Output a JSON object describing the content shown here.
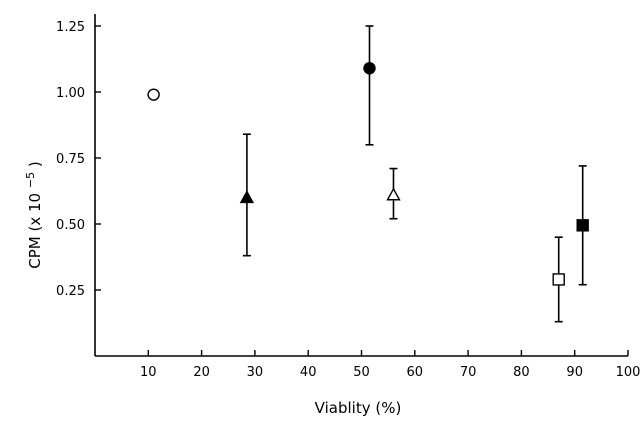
{
  "chart_data": {
    "type": "scatter",
    "title": "",
    "xlabel": "Viablity (%)",
    "ylabel": "CPM (x 10",
    "ylabel_exponent": "−5",
    "ylabel_suffix": ")",
    "xlim": [
      0,
      100
    ],
    "ylim": [
      0,
      1.35
    ],
    "x_ticks": [
      10,
      20,
      30,
      40,
      50,
      60,
      70,
      80,
      90,
      100
    ],
    "x_tick_labels": [
      "10",
      "20",
      "30",
      "40",
      "50",
      "60",
      "70",
      "80",
      "90",
      "100"
    ],
    "y_ticks": [
      0.25,
      0.5,
      0.75,
      1.0,
      1.25
    ],
    "y_tick_labels": [
      "0.25",
      "0.50",
      "0.75",
      "1.00",
      "1.25"
    ],
    "grid": false,
    "legend": "none",
    "points": [
      {
        "marker": "circle",
        "filled": false,
        "x": 11,
        "y": 0.99
      },
      {
        "marker": "triangle",
        "filled": true,
        "x": 28.5,
        "y": 0.6,
        "err_low": 0.38,
        "err_high": 0.84
      },
      {
        "marker": "circle",
        "filled": true,
        "x": 51.5,
        "y": 1.09,
        "err_low": 0.8,
        "err_high": 1.25
      },
      {
        "marker": "triangle",
        "filled": false,
        "x": 56,
        "y": 0.61,
        "err_low": 0.52,
        "err_high": 0.71
      },
      {
        "marker": "square",
        "filled": false,
        "x": 87,
        "y": 0.29,
        "err_low": 0.13,
        "err_high": 0.45
      },
      {
        "marker": "square",
        "filled": true,
        "x": 91.5,
        "y": 0.495,
        "err_low": 0.27,
        "err_high": 0.72
      }
    ]
  }
}
